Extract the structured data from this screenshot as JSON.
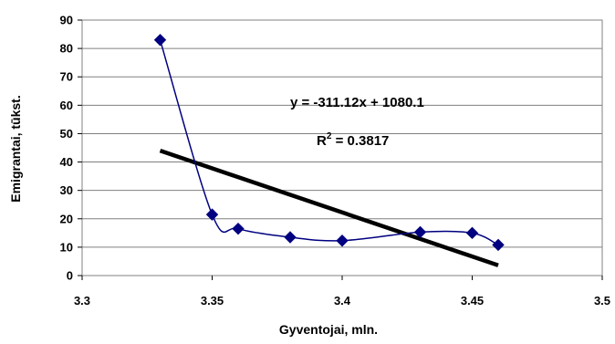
{
  "chart_data": {
    "type": "scatter",
    "title": "",
    "xlabel": "Gyventojai, mln.",
    "ylabel": "Emigrantai, tūkst.",
    "xlim": [
      3.3,
      3.5
    ],
    "ylim": [
      0,
      90
    ],
    "x_ticks": [
      "3.3",
      "3.35",
      "3.4",
      "3.45",
      "3.5"
    ],
    "y_ticks": [
      "0",
      "10",
      "20",
      "30",
      "40",
      "50",
      "60",
      "70",
      "80",
      "90"
    ],
    "grid": "horizontal",
    "series": [
      {
        "color": "#000080",
        "x": [
          3.33,
          3.35,
          3.36,
          3.38,
          3.4,
          3.43,
          3.45,
          3.46
        ],
        "y": [
          83.0,
          21.5,
          16.5,
          13.5,
          12.3,
          15.3,
          15.0,
          10.8
        ]
      }
    ],
    "trendline": {
      "x": [
        3.33,
        3.46
      ],
      "y": [
        44.0,
        3.6
      ],
      "color": "#000000"
    },
    "annotations": {
      "equation": "y = -311.12x + 1080.1",
      "r2_prefix": "R",
      "r2_sup": "2",
      "r2_suffix": " = 0.3817"
    }
  }
}
